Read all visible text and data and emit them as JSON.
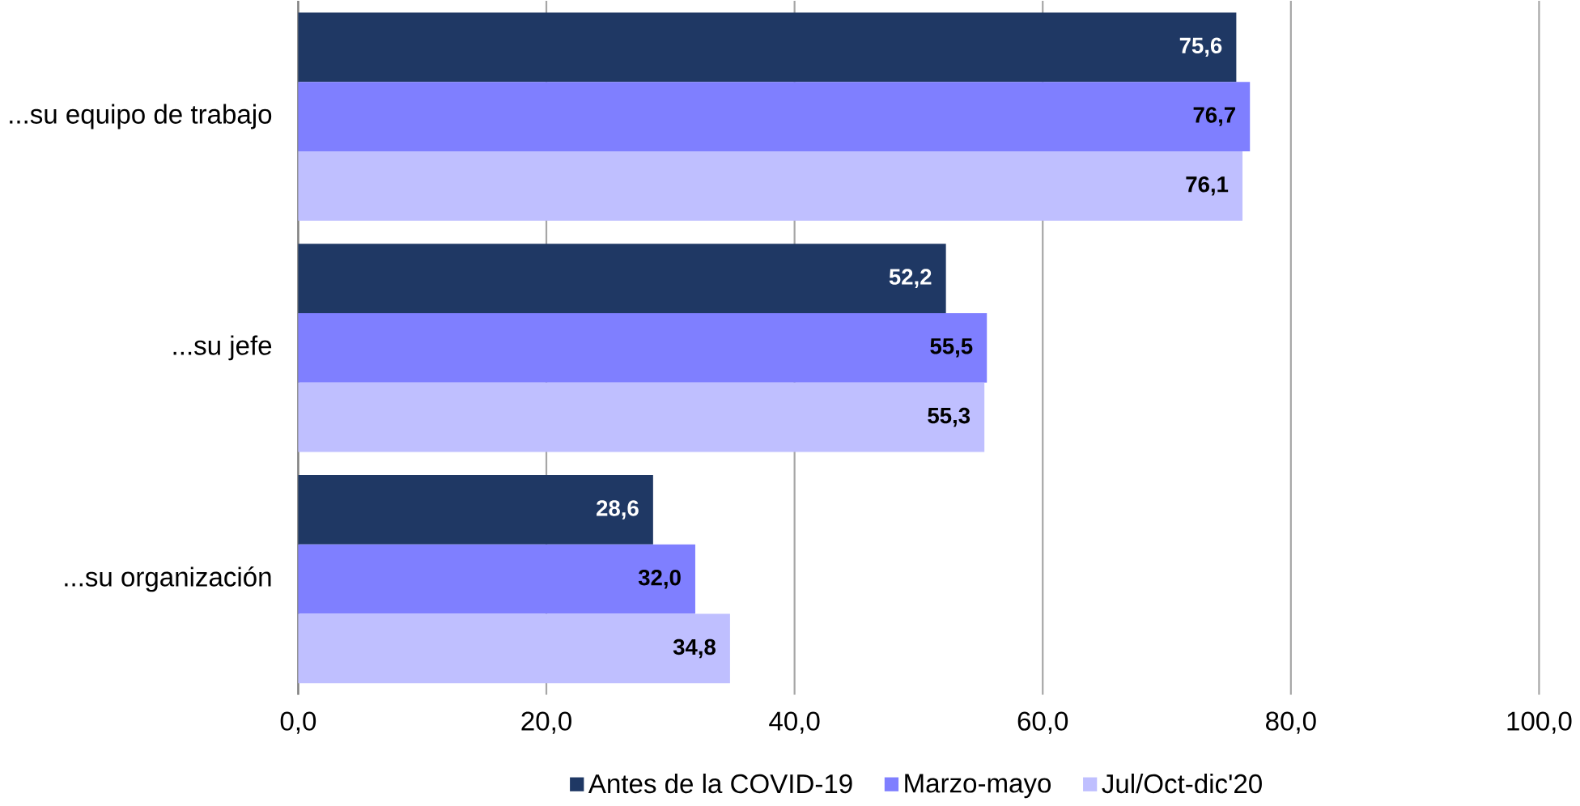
{
  "chart_data": {
    "type": "bar",
    "orientation": "horizontal",
    "categories": [
      "...su equipo de trabajo",
      "...su jefe",
      "...su organización"
    ],
    "series": [
      {
        "name": "Antes de la COVID-19",
        "color": "#1f3864",
        "values": [
          75.6,
          52.2,
          28.6
        ],
        "value_labels": [
          "75,6",
          "52,2",
          "28,6"
        ]
      },
      {
        "name": "Marzo-mayo",
        "color": "#7f7fff",
        "values": [
          76.7,
          55.5,
          32.0
        ],
        "value_labels": [
          "76,7",
          "55,5",
          "32,0"
        ]
      },
      {
        "name": "Jul/Oct-dic'20",
        "color": "#bfbfff",
        "values": [
          76.1,
          55.3,
          34.8
        ],
        "value_labels": [
          "76,1",
          "55,3",
          "34,8"
        ]
      }
    ],
    "xlim": [
      0,
      100
    ],
    "xticks": [
      {
        "value": 0,
        "label": "0,0"
      },
      {
        "value": 20,
        "label": "20,0"
      },
      {
        "value": 40,
        "label": "40,0"
      },
      {
        "value": 60,
        "label": "60,0"
      },
      {
        "value": 80,
        "label": "80,0"
      },
      {
        "value": 100,
        "label": "100,0"
      }
    ],
    "grid": "x",
    "legend": "bottom"
  }
}
